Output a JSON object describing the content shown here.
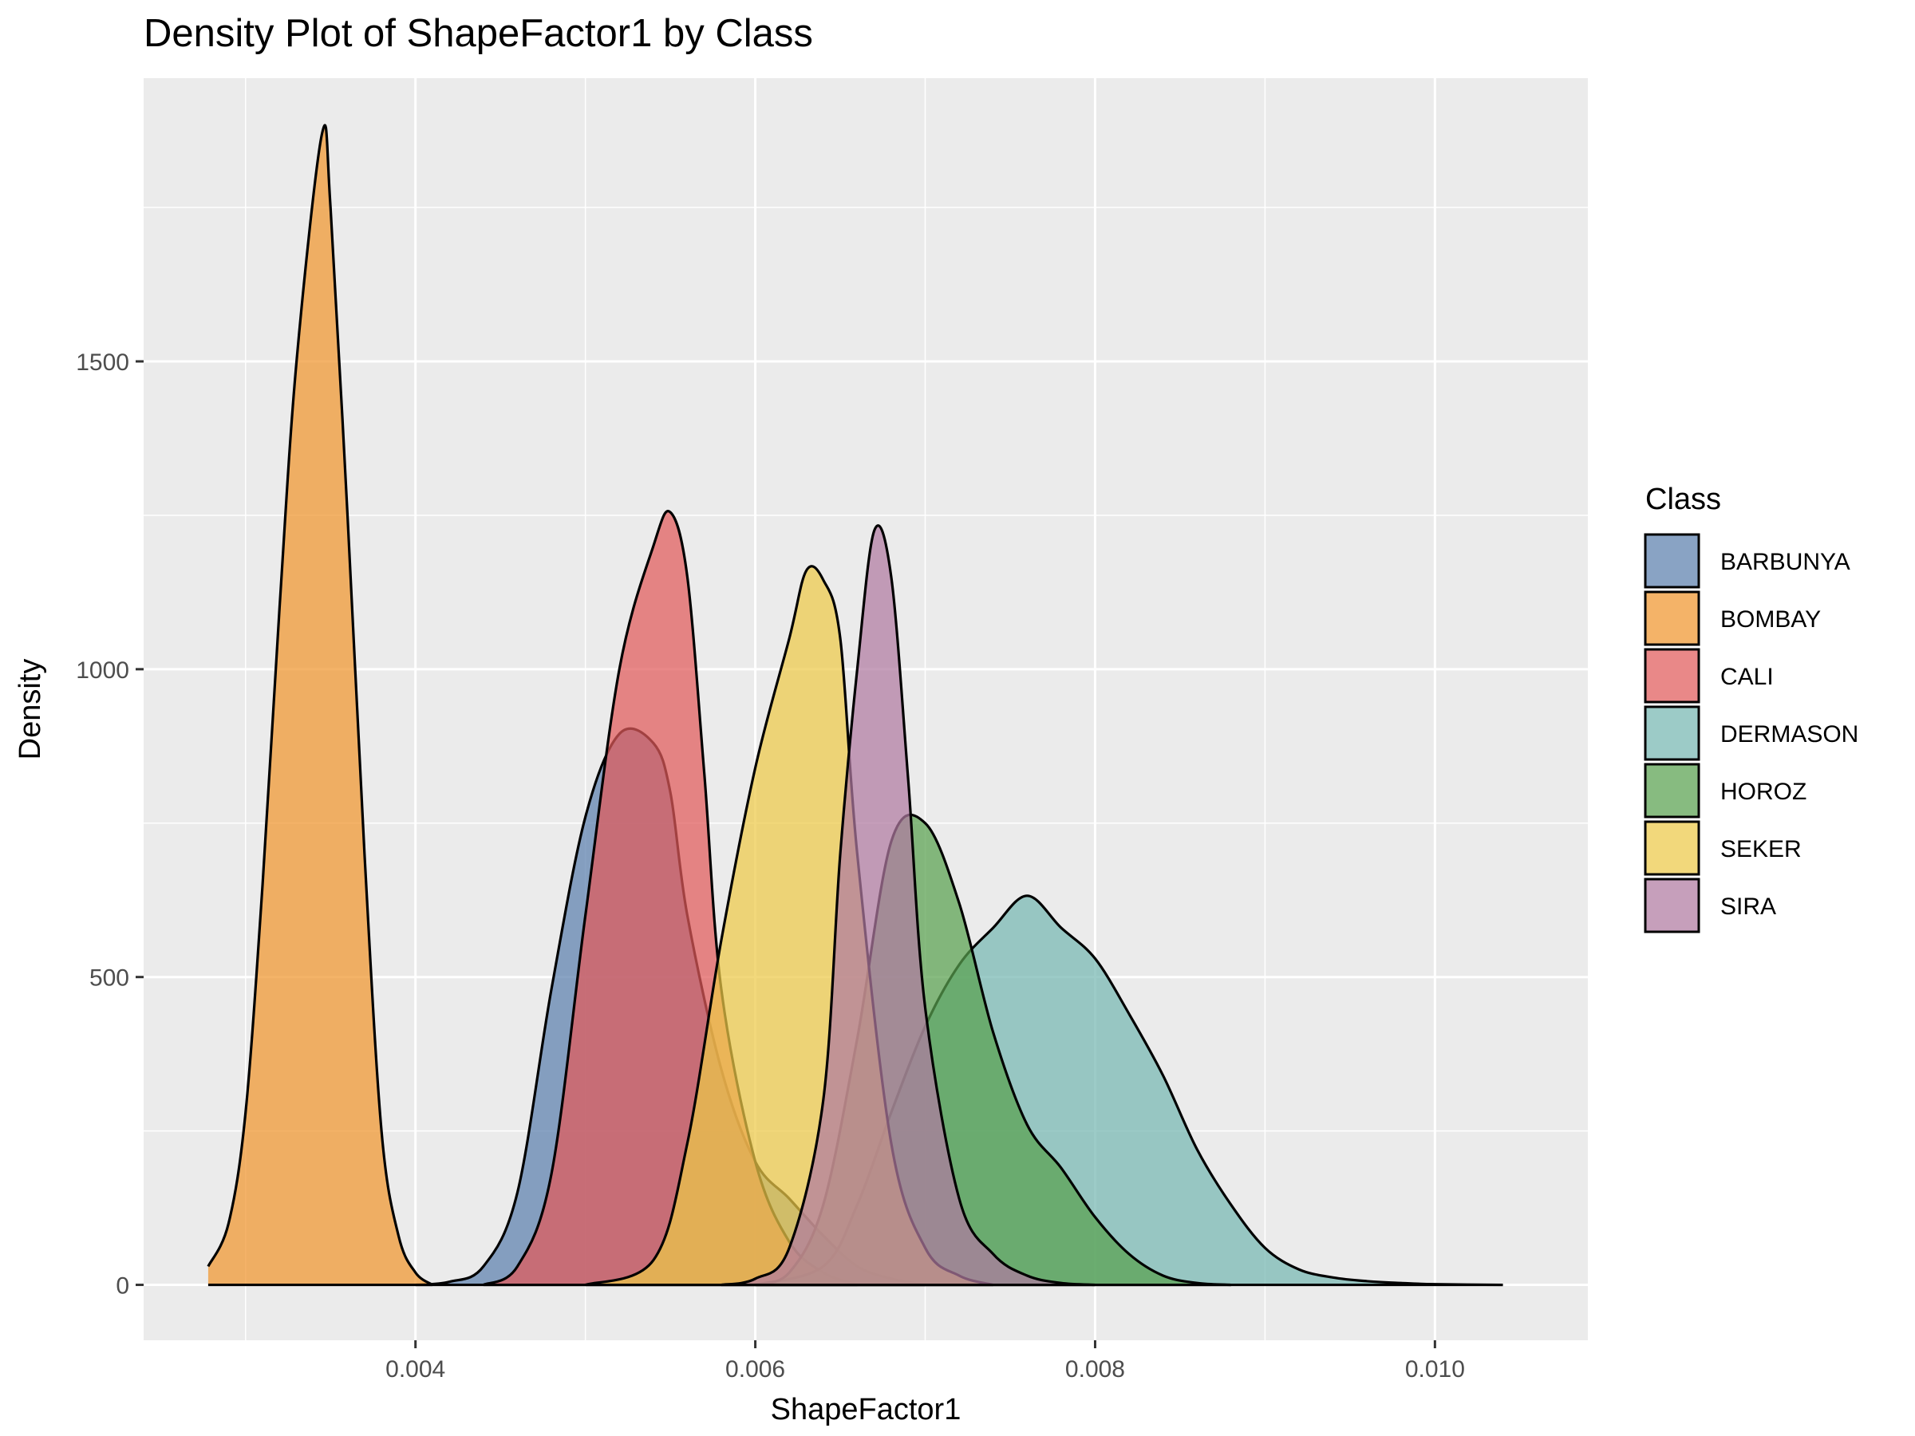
{
  "chart_data": {
    "type": "area",
    "title": "Density Plot of ShapeFactor1 by Class",
    "xlabel": "ShapeFactor1",
    "ylabel": "Density",
    "xlim": [
      0.0024,
      0.0109
    ],
    "ylim": [
      -90,
      1960
    ],
    "x_ticks": [
      0.004,
      0.006,
      0.008,
      0.01
    ],
    "x_tick_labels": [
      "0.004",
      "0.006",
      "0.008",
      "0.010"
    ],
    "y_ticks": [
      0,
      500,
      1000,
      1500
    ],
    "y_tick_labels": [
      "0",
      "500",
      "1000",
      "1500"
    ],
    "grid": true,
    "legend": {
      "title": "Class",
      "position": "right"
    },
    "series": [
      {
        "name": "BARBUNYA",
        "color": "#5b80ad",
        "points": [
          [
            0.004,
            0
          ],
          [
            0.0042,
            5
          ],
          [
            0.0044,
            30
          ],
          [
            0.0046,
            150
          ],
          [
            0.0048,
            480
          ],
          [
            0.005,
            760
          ],
          [
            0.0052,
            895
          ],
          [
            0.0054,
            880
          ],
          [
            0.0055,
            800
          ],
          [
            0.0056,
            600
          ],
          [
            0.0058,
            350
          ],
          [
            0.006,
            200
          ],
          [
            0.0062,
            140
          ],
          [
            0.0064,
            80
          ],
          [
            0.0066,
            30
          ],
          [
            0.0068,
            10
          ],
          [
            0.007,
            0
          ]
        ]
      },
      {
        "name": "BOMBAY",
        "color": "#f0952e",
        "points": [
          [
            0.00278,
            30
          ],
          [
            0.0029,
            100
          ],
          [
            0.003,
            280
          ],
          [
            0.0031,
            650
          ],
          [
            0.0032,
            1100
          ],
          [
            0.0033,
            1500
          ],
          [
            0.00345,
            1870
          ],
          [
            0.0035,
            1750
          ],
          [
            0.0036,
            1250
          ],
          [
            0.0037,
            700
          ],
          [
            0.0038,
            250
          ],
          [
            0.0039,
            80
          ],
          [
            0.004,
            20
          ],
          [
            0.0041,
            0
          ]
        ]
      },
      {
        "name": "CALI",
        "color": "#e05a5a",
        "points": [
          [
            0.0044,
            0
          ],
          [
            0.0046,
            30
          ],
          [
            0.0048,
            180
          ],
          [
            0.005,
            600
          ],
          [
            0.0052,
            1000
          ],
          [
            0.0054,
            1200
          ],
          [
            0.0055,
            1255
          ],
          [
            0.0056,
            1150
          ],
          [
            0.0057,
            830
          ],
          [
            0.0058,
            480
          ],
          [
            0.006,
            200
          ],
          [
            0.0062,
            70
          ],
          [
            0.0064,
            20
          ],
          [
            0.0066,
            0
          ]
        ]
      },
      {
        "name": "DERMASON",
        "color": "#76b7b2",
        "points": [
          [
            0.006,
            0
          ],
          [
            0.0064,
            30
          ],
          [
            0.0066,
            130
          ],
          [
            0.0068,
            280
          ],
          [
            0.007,
            420
          ],
          [
            0.0072,
            520
          ],
          [
            0.0074,
            580
          ],
          [
            0.0076,
            632
          ],
          [
            0.0078,
            580
          ],
          [
            0.008,
            530
          ],
          [
            0.0082,
            440
          ],
          [
            0.0084,
            340
          ],
          [
            0.0086,
            220
          ],
          [
            0.0088,
            130
          ],
          [
            0.009,
            60
          ],
          [
            0.0092,
            25
          ],
          [
            0.0094,
            12
          ],
          [
            0.0096,
            6
          ],
          [
            0.0098,
            3
          ],
          [
            0.01,
            1
          ],
          [
            0.0104,
            0
          ]
        ]
      },
      {
        "name": "HOROZ",
        "color": "#59a14f",
        "points": [
          [
            0.006,
            0
          ],
          [
            0.0062,
            20
          ],
          [
            0.0064,
            130
          ],
          [
            0.0066,
            400
          ],
          [
            0.0068,
            720
          ],
          [
            0.007,
            750
          ],
          [
            0.0072,
            620
          ],
          [
            0.0074,
            410
          ],
          [
            0.0076,
            260
          ],
          [
            0.0078,
            190
          ],
          [
            0.008,
            110
          ],
          [
            0.0082,
            50
          ],
          [
            0.0084,
            15
          ],
          [
            0.0086,
            3
          ],
          [
            0.0088,
            0
          ]
        ]
      },
      {
        "name": "SEKER",
        "color": "#edc948",
        "points": [
          [
            0.005,
            0
          ],
          [
            0.0054,
            40
          ],
          [
            0.0056,
            230
          ],
          [
            0.0058,
            560
          ],
          [
            0.006,
            840
          ],
          [
            0.0062,
            1050
          ],
          [
            0.0063,
            1160
          ],
          [
            0.0064,
            1145
          ],
          [
            0.0065,
            1050
          ],
          [
            0.0066,
            700
          ],
          [
            0.0068,
            230
          ],
          [
            0.007,
            60
          ],
          [
            0.0072,
            15
          ],
          [
            0.0074,
            0
          ]
        ]
      },
      {
        "name": "SIRA",
        "color": "#b07aa1",
        "points": [
          [
            0.0058,
            0
          ],
          [
            0.006,
            10
          ],
          [
            0.0062,
            60
          ],
          [
            0.0064,
            300
          ],
          [
            0.0065,
            700
          ],
          [
            0.0066,
            1000
          ],
          [
            0.0067,
            1225
          ],
          [
            0.0068,
            1150
          ],
          [
            0.0069,
            820
          ],
          [
            0.007,
            450
          ],
          [
            0.0072,
            140
          ],
          [
            0.0074,
            50
          ],
          [
            0.0076,
            15
          ],
          [
            0.0078,
            3
          ],
          [
            0.008,
            0
          ]
        ]
      }
    ]
  }
}
